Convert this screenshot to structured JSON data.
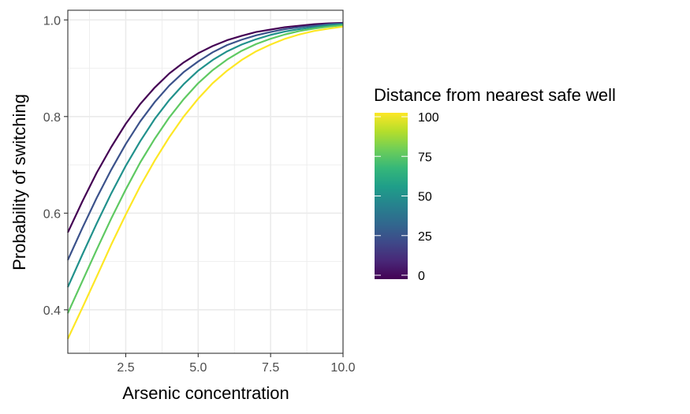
{
  "chart_data": {
    "type": "line",
    "xlabel": "Arsenic concentration",
    "ylabel": "Probability of switching",
    "xlim": [
      0.5,
      10
    ],
    "ylim": [
      0.31,
      1.02
    ],
    "x_ticks": [
      2.5,
      5.0,
      7.5,
      10.0
    ],
    "x_tick_labels": [
      "2.5",
      "5.0",
      "7.5",
      "10.0"
    ],
    "y_ticks": [
      0.4,
      0.6,
      0.8,
      1.0
    ],
    "y_tick_labels": [
      "0.4",
      "0.6",
      "0.8",
      "1.0"
    ],
    "grid": true,
    "x": [
      0.5,
      1.0,
      1.5,
      2.0,
      2.5,
      3.0,
      3.5,
      4.0,
      4.5,
      5.0,
      5.5,
      6.0,
      6.5,
      7.0,
      7.5,
      8.0,
      8.5,
      9.0,
      9.5,
      10.0
    ],
    "series": [
      {
        "distance": 0,
        "color": "#440154",
        "values": [
          0.56,
          0.624,
          0.684,
          0.737,
          0.785,
          0.826,
          0.86,
          0.889,
          0.912,
          0.931,
          0.946,
          0.958,
          0.967,
          0.975,
          0.98,
          0.985,
          0.988,
          0.991,
          0.993,
          0.994
        ]
      },
      {
        "distance": 25,
        "color": "#3b528b",
        "values": [
          0.503,
          0.569,
          0.632,
          0.69,
          0.743,
          0.79,
          0.83,
          0.864,
          0.892,
          0.914,
          0.933,
          0.948,
          0.959,
          0.968,
          0.975,
          0.981,
          0.985,
          0.988,
          0.991,
          0.993
        ]
      },
      {
        "distance": 50,
        "color": "#21918c",
        "values": [
          0.447,
          0.514,
          0.579,
          0.641,
          0.698,
          0.749,
          0.795,
          0.834,
          0.867,
          0.895,
          0.917,
          0.935,
          0.949,
          0.96,
          0.969,
          0.976,
          0.981,
          0.985,
          0.989,
          0.991
        ]
      },
      {
        "distance": 75,
        "color": "#5ec962",
        "values": [
          0.393,
          0.459,
          0.525,
          0.589,
          0.649,
          0.705,
          0.754,
          0.798,
          0.836,
          0.869,
          0.896,
          0.918,
          0.936,
          0.95,
          0.961,
          0.97,
          0.977,
          0.982,
          0.986,
          0.989
        ]
      },
      {
        "distance": 100,
        "color": "#fde725",
        "values": [
          0.34,
          0.404,
          0.469,
          0.535,
          0.597,
          0.656,
          0.709,
          0.757,
          0.8,
          0.837,
          0.869,
          0.895,
          0.917,
          0.935,
          0.949,
          0.961,
          0.97,
          0.977,
          0.982,
          0.986
        ]
      }
    ],
    "legend": {
      "title": "Distance from nearest safe well",
      "placement": "right",
      "min": 0,
      "max": 100,
      "breaks": [
        0,
        25,
        50,
        75,
        100
      ],
      "break_labels": [
        "0",
        "25",
        "50",
        "75",
        "100"
      ],
      "colors": [
        "#440154",
        "#482878",
        "#3e4989",
        "#31688e",
        "#26828e",
        "#1f9e89",
        "#35b779",
        "#6ece58",
        "#b5de2b",
        "#fde725"
      ]
    }
  }
}
